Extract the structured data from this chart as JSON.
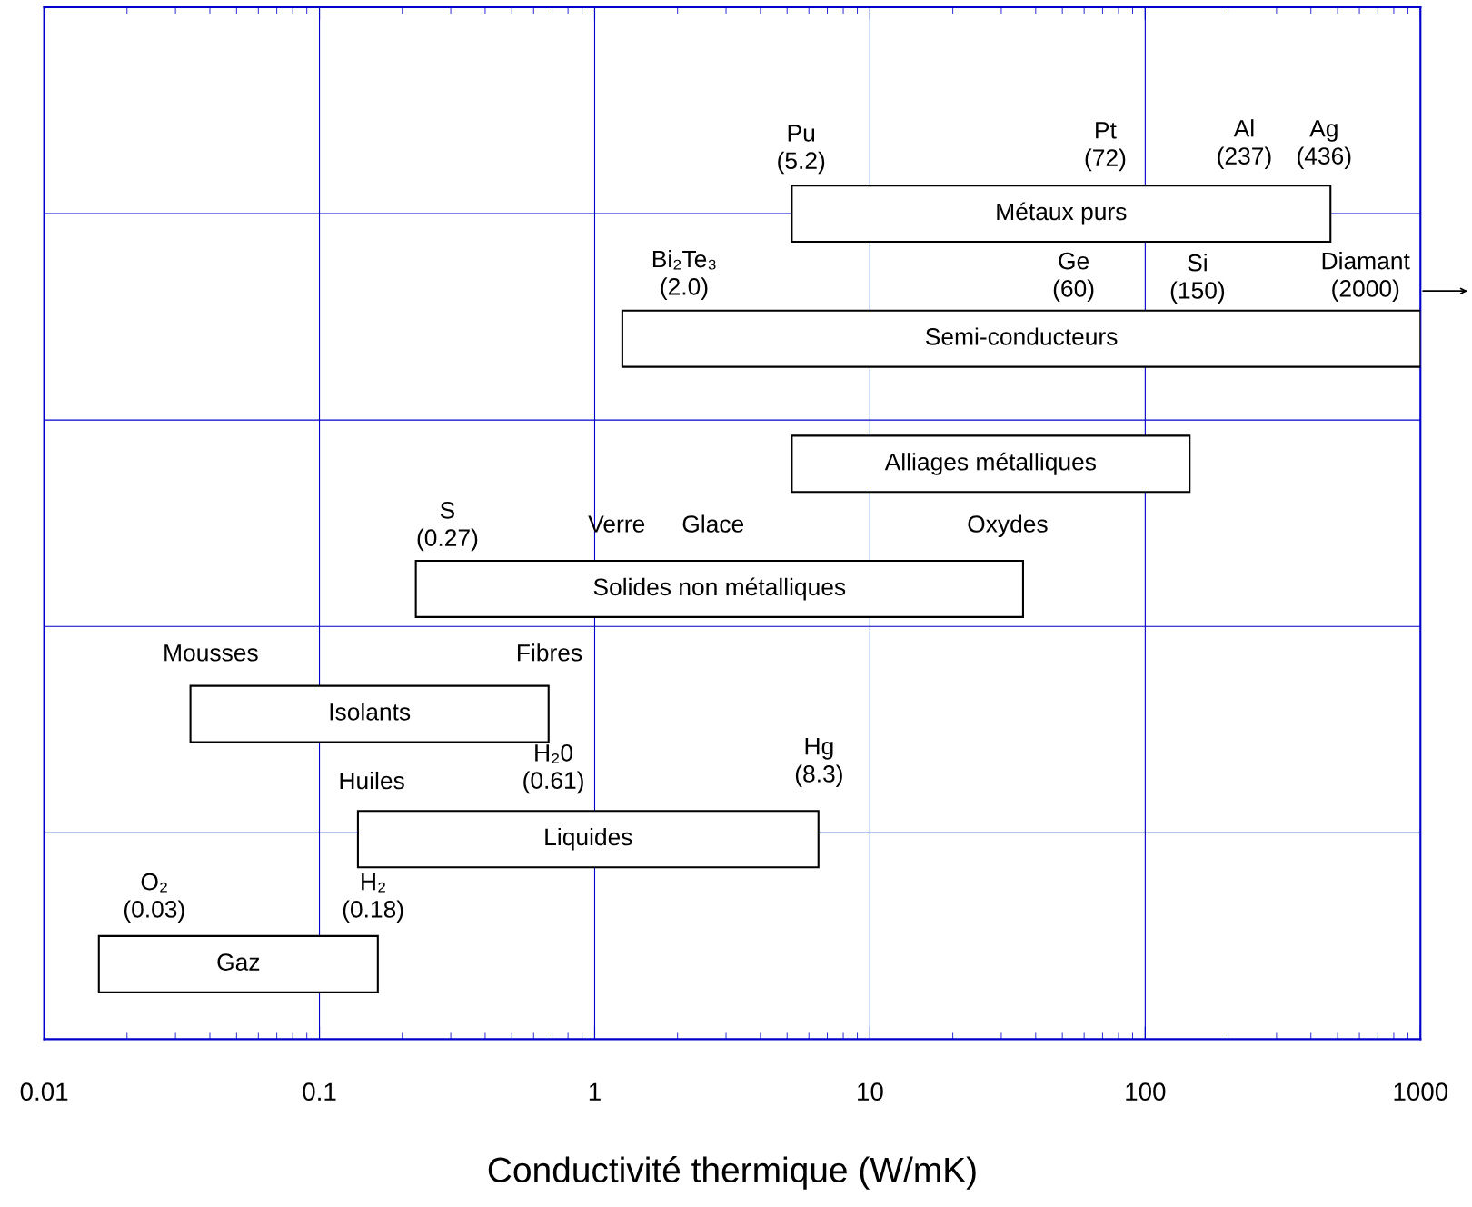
{
  "chart_data": {
    "type": "bar",
    "orientation": "horizontal",
    "xlabel": "Conductivité thermique (W/mK)",
    "categories": [
      "Métaux purs",
      "Semi-conducteurs",
      "Alliages métalliques",
      "Solides non métalliques",
      "Isolants",
      "Liquides",
      "Gaz"
    ],
    "base": [
      5.2,
      1.26,
      5.2,
      0.224,
      0.034,
      0.138,
      0.0158
    ],
    "values": [
      465.8,
      998.74,
      139.8,
      35.776,
      0.646,
      6.362,
      0.1472
    ],
    "color": "#ffffff",
    "log": "x",
    "xlim": [
      0.01,
      1000
    ],
    "xticks": [
      0.01,
      0.1,
      1,
      10,
      100,
      1000
    ],
    "grid": true,
    "annotations": [
      "Pu\n(5.2)",
      "Pt\n(72)",
      "Al\n(237)",
      "Ag\n(436)",
      "Bi₂Te₃\n(2.0)",
      "Ge\n(60)",
      "Si\n(150)",
      "Diamant\n(2000)",
      "S\n(0.27)",
      "Verre",
      "Glace",
      "Oxydes",
      "Mousses",
      "Fibres",
      "Huiles",
      "H₂0\n(0.61)",
      "Hg\n(8.3)",
      "O₂\n(0.03)",
      "H₂\n(0.18)"
    ]
  }
}
